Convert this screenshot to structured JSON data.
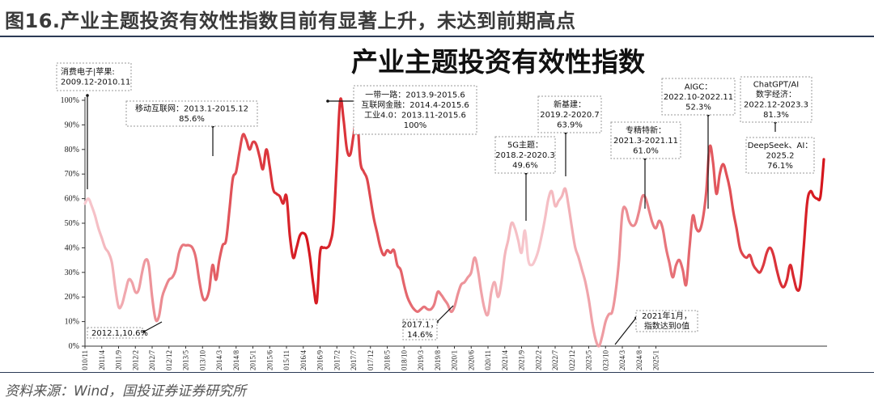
{
  "figure_title": "图16.产业主题投资有效性指数目前有显著上升，未达到前期高点",
  "source": "资料来源：Wind，国投证券证券研究所",
  "chart_data": {
    "type": "line",
    "title": "产业主题投资有效性指数",
    "ylim": [
      0,
      100
    ],
    "y_ticks": [
      "0%",
      "10%",
      "20%",
      "30%",
      "40%",
      "50%",
      "60%",
      "70%",
      "80%",
      "90%",
      "100%"
    ],
    "x_ticks": [
      "2010/11",
      "2011/4",
      "2011/9",
      "2012/2",
      "2012/7",
      "2012/12",
      "2013/5",
      "2013/10",
      "2014/3",
      "2014/8",
      "2015/1",
      "2015/6",
      "2015/11",
      "2016/4",
      "2016/9",
      "2017/2",
      "2017/7",
      "2017/12",
      "2018/5",
      "2018/10",
      "2019/3",
      "2019/8",
      "2020/1",
      "2020/6",
      "2020/11",
      "2021/4",
      "2021/9",
      "2022/2",
      "2022/7",
      "2022/12",
      "2023/5",
      "2023/10",
      "2024/3",
      "2024/8",
      "2025/1"
    ],
    "line_color_start": "#f7c9cf",
    "line_color_end": "#d5151c",
    "series": [
      {
        "values": [
          58,
          60,
          57,
          53,
          48,
          44,
          40,
          38,
          34,
          24,
          16,
          17,
          22,
          27,
          26,
          22,
          23,
          30,
          35,
          33,
          20,
          11,
          12,
          20,
          24,
          27,
          28,
          31,
          38,
          41,
          41,
          41,
          40,
          36,
          27,
          20,
          19,
          23,
          33,
          27,
          35,
          41,
          43,
          55,
          68,
          71,
          79,
          86,
          84,
          80,
          83,
          82,
          77,
          72,
          80,
          73,
          64,
          62,
          61,
          58,
          61,
          45,
          36,
          40,
          45,
          46,
          44,
          36,
          25,
          18,
          38,
          40,
          40,
          42,
          50,
          75,
          100,
          92,
          80,
          78,
          86,
          93,
          75,
          71,
          68,
          60,
          52,
          46,
          40,
          37,
          39,
          38,
          39,
          33,
          31,
          25,
          20,
          17,
          15,
          14,
          15,
          16,
          15,
          15,
          17,
          22,
          21,
          19,
          17,
          14,
          16,
          21,
          25,
          26,
          28,
          30,
          36,
          31,
          22,
          15,
          13,
          22,
          26,
          20,
          26,
          37,
          43,
          50,
          48,
          43,
          38,
          47,
          35,
          33,
          35,
          39,
          45,
          52,
          60,
          63,
          57,
          59,
          61,
          64,
          57,
          48,
          40,
          36,
          31,
          26,
          19,
          10,
          3,
          0,
          4,
          10,
          13,
          14,
          22,
          35,
          54,
          56,
          51,
          49,
          50,
          55,
          61,
          60,
          55,
          50,
          48,
          51,
          48,
          40,
          34,
          28,
          33,
          35,
          31,
          25,
          40,
          53,
          48,
          47,
          52,
          63,
          81,
          75,
          62,
          70,
          74,
          70,
          64,
          55,
          48,
          40,
          37,
          36,
          37,
          33,
          31,
          30,
          33,
          38,
          40,
          37,
          31,
          26,
          24,
          27,
          33,
          28,
          23,
          25,
          40,
          58,
          63,
          61,
          60,
          61,
          76
        ],
        "start": "2010-11",
        "frequency": "monthly"
      }
    ],
    "annotations": [
      {
        "id": "a1",
        "lines": [
          "消费电子|苹果:",
          "2009.12-2010.11"
        ]
      },
      {
        "id": "a2",
        "lines": [
          "移动互联网：2013.1-2015.12",
          "85.6%"
        ]
      },
      {
        "id": "a3",
        "lines": [
          "一带一路：2013.9-2015.6",
          "互联网金融：2014.4-2015.6",
          "工业4.0：2013.11-2015.6",
          "100%"
        ]
      },
      {
        "id": "a4",
        "lines": [
          "5G主题：",
          "2018.2-2020.3",
          "49.6%"
        ]
      },
      {
        "id": "a5",
        "lines": [
          "新基建：",
          "2019.2-2020.7",
          "63.9%"
        ]
      },
      {
        "id": "a6",
        "lines": [
          "专精特新：",
          "2021.3-2021.11",
          "61.0%"
        ]
      },
      {
        "id": "a7",
        "lines": [
          "AIGC：",
          "2022.10-2022.11",
          "52.3%"
        ]
      },
      {
        "id": "a8",
        "lines": [
          "ChatGPT/AI",
          "数字经济：",
          "2022.12-2023.3",
          "81.3%"
        ]
      },
      {
        "id": "a9",
        "lines": [
          "DeepSeek、AI：",
          "2025.2",
          "76.1%"
        ]
      },
      {
        "id": "a10",
        "lines": [
          "2012.1,10.6%"
        ]
      },
      {
        "id": "a11",
        "lines": [
          "2017.1，",
          "14.6%"
        ]
      },
      {
        "id": "a12",
        "lines": [
          "2021年1月，",
          "指数达到0值"
        ]
      }
    ]
  }
}
